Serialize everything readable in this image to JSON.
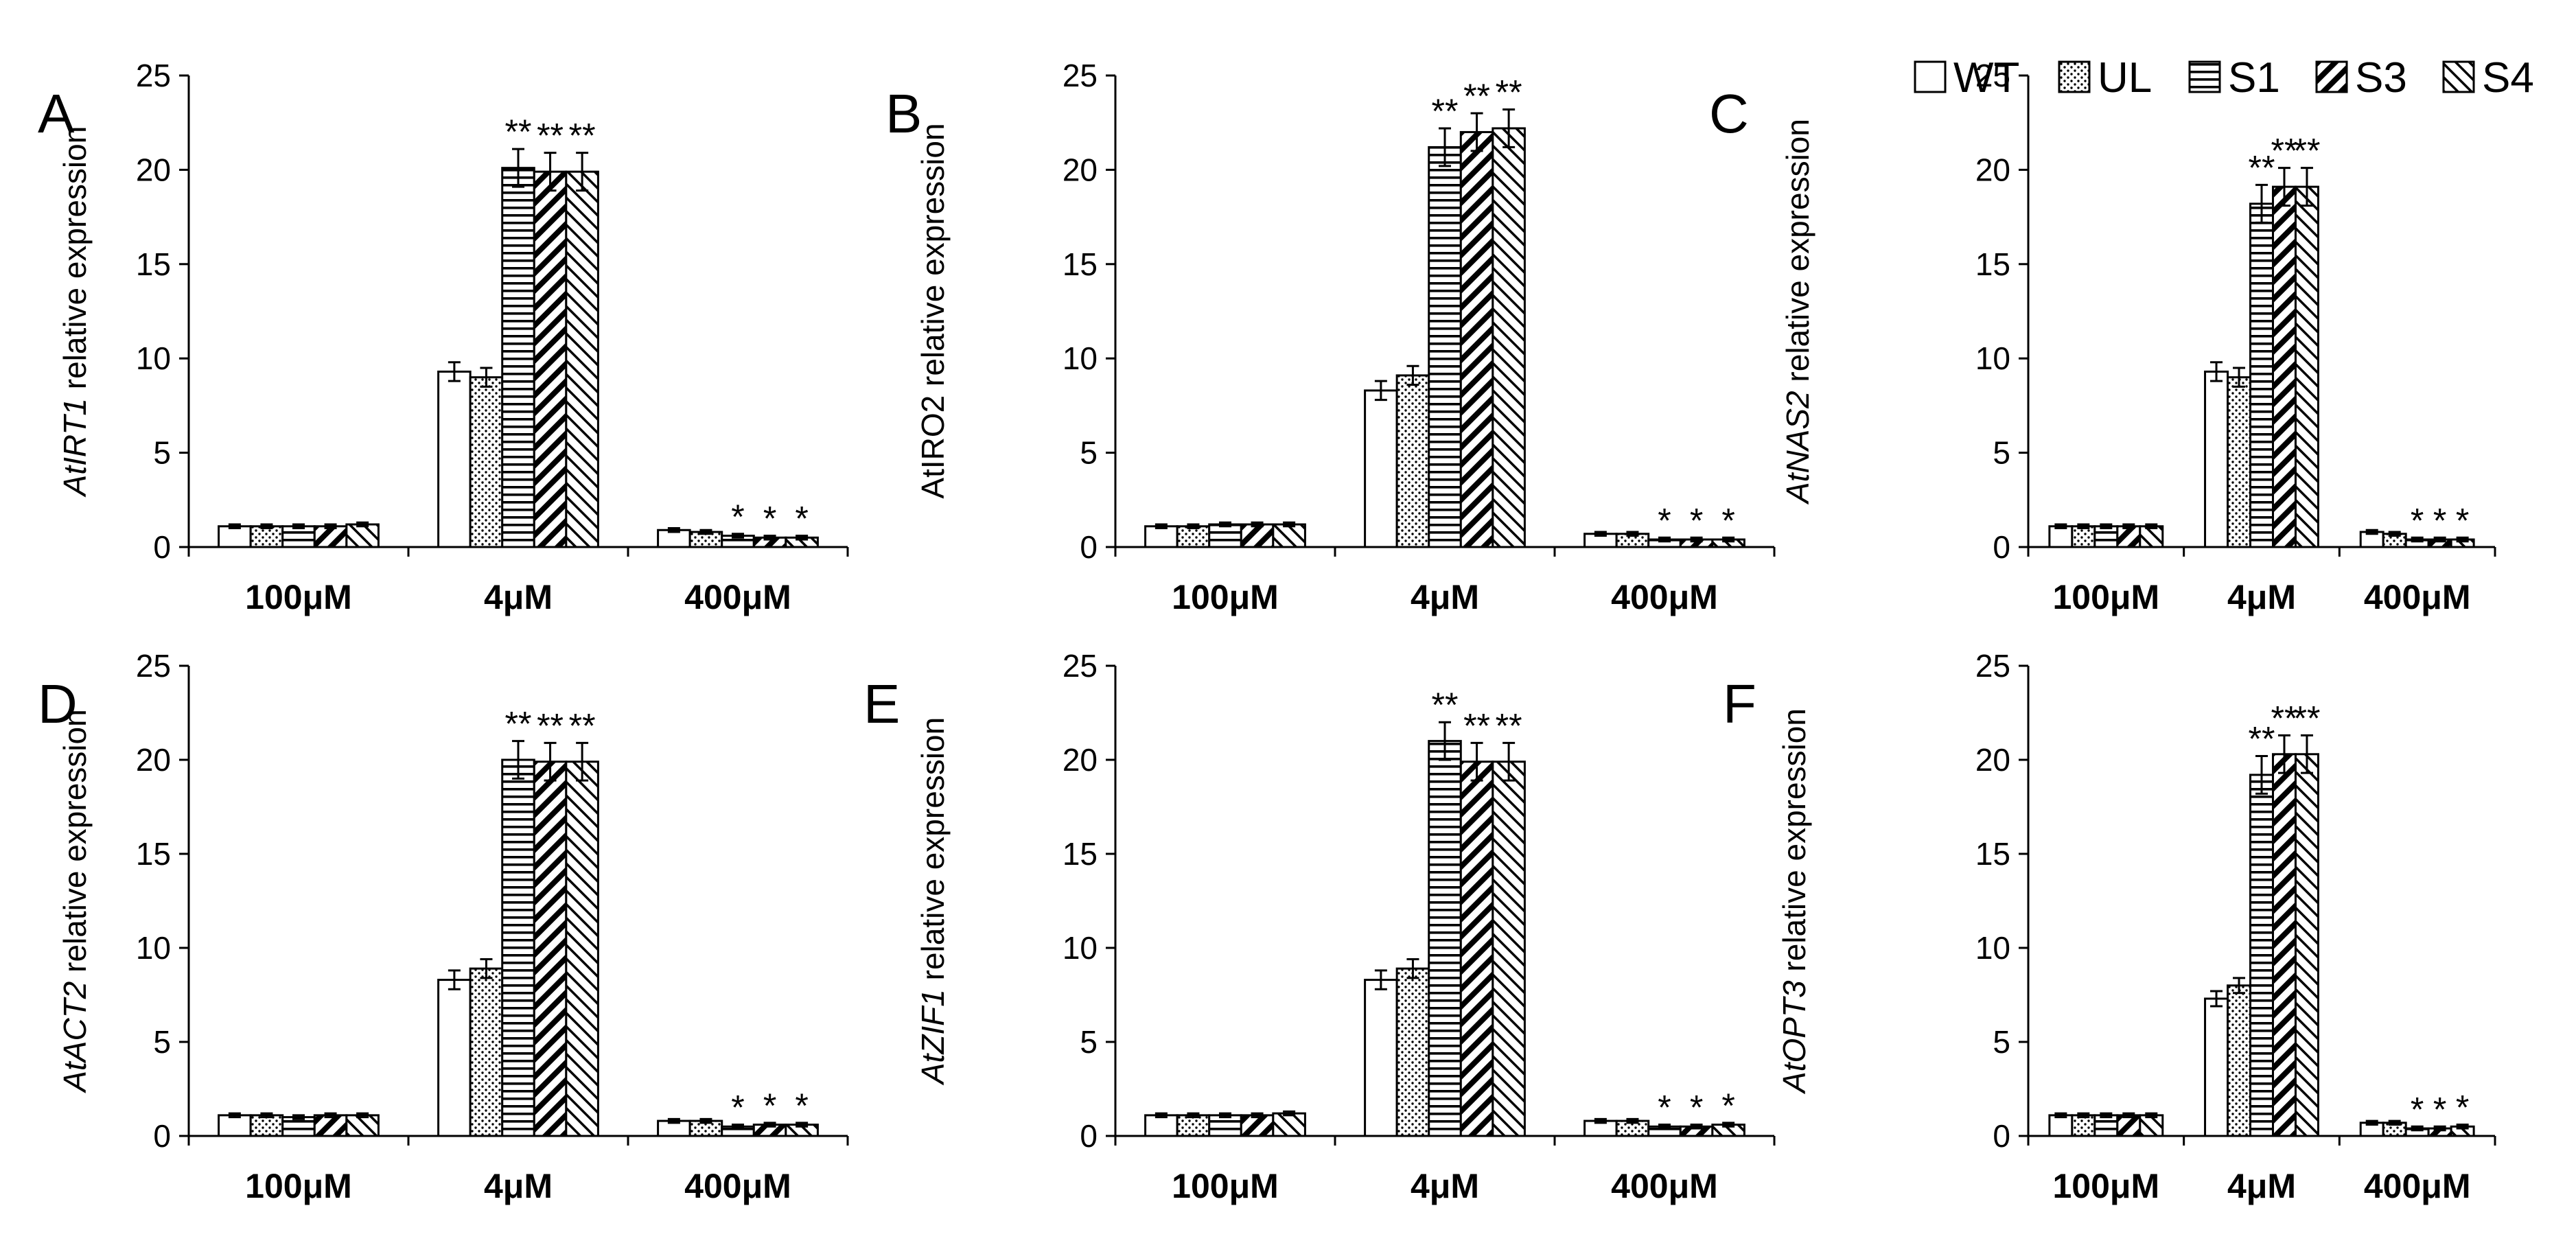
{
  "colors": {
    "bar_fill": "#ffffff",
    "ink": "#000000"
  },
  "legend": {
    "entries": [
      {
        "name": "WT",
        "pattern": "plain"
      },
      {
        "name": "UL",
        "pattern": "dots"
      },
      {
        "name": "S1",
        "pattern": "horizontal"
      },
      {
        "name": "S3",
        "pattern": "diag-down-wide"
      },
      {
        "name": "S4",
        "pattern": "diag-up"
      }
    ],
    "placement": "top-right"
  },
  "chart_data": [
    {
      "panel": "A",
      "type": "bar",
      "ylabel_italic": "AtIRT1",
      "ylabel_rest": " relative expression",
      "ylim": [
        0,
        25
      ],
      "yticks": [
        0,
        5,
        10,
        15,
        20,
        25
      ],
      "categories": [
        "100μM",
        "4μM",
        "400μM"
      ],
      "series": [
        {
          "name": "WT",
          "values": [
            1.1,
            9.3,
            0.9
          ],
          "errors": [
            0.1,
            0.5,
            0.1
          ],
          "sig": [
            "",
            "",
            ""
          ]
        },
        {
          "name": "UL",
          "values": [
            1.1,
            9.0,
            0.8
          ],
          "errors": [
            0.1,
            0.5,
            0.1
          ],
          "sig": [
            "",
            "",
            ""
          ]
        },
        {
          "name": "S1",
          "values": [
            1.1,
            20.1,
            0.6
          ],
          "errors": [
            0.1,
            1.0,
            0.1
          ],
          "sig": [
            "",
            "**",
            "*"
          ]
        },
        {
          "name": "S3",
          "values": [
            1.1,
            19.9,
            0.5
          ],
          "errors": [
            0.1,
            1.0,
            0.1
          ],
          "sig": [
            "",
            "**",
            "*"
          ]
        },
        {
          "name": "S4",
          "values": [
            1.2,
            19.9,
            0.5
          ],
          "errors": [
            0.1,
            1.0,
            0.1
          ],
          "sig": [
            "",
            "**",
            "*"
          ]
        }
      ]
    },
    {
      "panel": "B",
      "type": "bar",
      "ylabel_italic": "",
      "ylabel_rest": "AtIRO2 relative expression",
      "ylim": [
        0,
        25
      ],
      "yticks": [
        0,
        5,
        10,
        15,
        20,
        25
      ],
      "categories": [
        "100μM",
        "4μM",
        "400μM"
      ],
      "series": [
        {
          "name": "WT",
          "values": [
            1.1,
            8.3,
            0.7
          ],
          "errors": [
            0.1,
            0.5,
            0.1
          ],
          "sig": [
            "",
            "",
            ""
          ]
        },
        {
          "name": "UL",
          "values": [
            1.1,
            9.1,
            0.7
          ],
          "errors": [
            0.1,
            0.5,
            0.1
          ],
          "sig": [
            "",
            "",
            ""
          ]
        },
        {
          "name": "S1",
          "values": [
            1.2,
            21.2,
            0.4
          ],
          "errors": [
            0.1,
            1.0,
            0.1
          ],
          "sig": [
            "",
            "**",
            "*"
          ]
        },
        {
          "name": "S3",
          "values": [
            1.2,
            22.0,
            0.4
          ],
          "errors": [
            0.1,
            1.0,
            0.1
          ],
          "sig": [
            "",
            "**",
            "*"
          ]
        },
        {
          "name": "S4",
          "values": [
            1.2,
            22.2,
            0.4
          ],
          "errors": [
            0.1,
            1.0,
            0.1
          ],
          "sig": [
            "",
            "**",
            "*"
          ]
        }
      ]
    },
    {
      "panel": "C",
      "type": "bar",
      "ylabel_italic": "AtNAS2",
      "ylabel_rest": " relative expression",
      "ylim": [
        0,
        25
      ],
      "yticks": [
        0,
        5,
        10,
        15,
        20,
        25
      ],
      "categories": [
        "100μM",
        "4μM",
        "400μM"
      ],
      "series": [
        {
          "name": "WT",
          "values": [
            1.1,
            9.3,
            0.8
          ],
          "errors": [
            0.1,
            0.5,
            0.1
          ],
          "sig": [
            "",
            "",
            ""
          ]
        },
        {
          "name": "UL",
          "values": [
            1.1,
            9.0,
            0.7
          ],
          "errors": [
            0.1,
            0.5,
            0.1
          ],
          "sig": [
            "",
            "",
            ""
          ]
        },
        {
          "name": "S1",
          "values": [
            1.1,
            18.2,
            0.4
          ],
          "errors": [
            0.1,
            1.0,
            0.1
          ],
          "sig": [
            "",
            "**",
            "*"
          ]
        },
        {
          "name": "S3",
          "values": [
            1.1,
            19.1,
            0.4
          ],
          "errors": [
            0.1,
            1.0,
            0.1
          ],
          "sig": [
            "",
            "**",
            "*"
          ]
        },
        {
          "name": "S4",
          "values": [
            1.1,
            19.1,
            0.4
          ],
          "errors": [
            0.1,
            1.0,
            0.1
          ],
          "sig": [
            "",
            "**",
            "*"
          ]
        }
      ]
    },
    {
      "panel": "D",
      "type": "bar",
      "ylabel_italic": "AtACT2",
      "ylabel_rest": " relative expression",
      "ylim": [
        0,
        25
      ],
      "yticks": [
        0,
        5,
        10,
        15,
        20,
        25
      ],
      "categories": [
        "100μM",
        "4μM",
        "400μM"
      ],
      "series": [
        {
          "name": "WT",
          "values": [
            1.1,
            8.3,
            0.8
          ],
          "errors": [
            0.1,
            0.5,
            0.1
          ],
          "sig": [
            "",
            "",
            ""
          ]
        },
        {
          "name": "UL",
          "values": [
            1.1,
            8.9,
            0.8
          ],
          "errors": [
            0.1,
            0.5,
            0.1
          ],
          "sig": [
            "",
            "",
            ""
          ]
        },
        {
          "name": "S1",
          "values": [
            1.0,
            20.0,
            0.5
          ],
          "errors": [
            0.1,
            1.0,
            0.1
          ],
          "sig": [
            "",
            "**",
            "*"
          ]
        },
        {
          "name": "S3",
          "values": [
            1.1,
            19.9,
            0.6
          ],
          "errors": [
            0.1,
            1.0,
            0.1
          ],
          "sig": [
            "",
            "**",
            "*"
          ]
        },
        {
          "name": "S4",
          "values": [
            1.1,
            19.9,
            0.6
          ],
          "errors": [
            0.1,
            1.0,
            0.1
          ],
          "sig": [
            "",
            "**",
            "*"
          ]
        }
      ]
    },
    {
      "panel": "E",
      "type": "bar",
      "ylabel_italic": "AtZIF1",
      "ylabel_rest": " relative expression",
      "ylim": [
        0,
        25
      ],
      "yticks": [
        0,
        5,
        10,
        15,
        20,
        25
      ],
      "categories": [
        "100μM",
        "4μM",
        "400μM"
      ],
      "series": [
        {
          "name": "WT",
          "values": [
            1.1,
            8.3,
            0.8
          ],
          "errors": [
            0.1,
            0.5,
            0.1
          ],
          "sig": [
            "",
            "",
            ""
          ]
        },
        {
          "name": "UL",
          "values": [
            1.1,
            8.9,
            0.8
          ],
          "errors": [
            0.1,
            0.5,
            0.1
          ],
          "sig": [
            "",
            "",
            ""
          ]
        },
        {
          "name": "S1",
          "values": [
            1.1,
            21.0,
            0.5
          ],
          "errors": [
            0.1,
            1.0,
            0.1
          ],
          "sig": [
            "",
            "**",
            "*"
          ]
        },
        {
          "name": "S3",
          "values": [
            1.1,
            19.9,
            0.5
          ],
          "errors": [
            0.1,
            1.0,
            0.1
          ],
          "sig": [
            "",
            "**",
            "*"
          ]
        },
        {
          "name": "S4",
          "values": [
            1.2,
            19.9,
            0.6
          ],
          "errors": [
            0.1,
            1.0,
            0.1
          ],
          "sig": [
            "",
            "**",
            "*"
          ]
        }
      ]
    },
    {
      "panel": "F",
      "type": "bar",
      "ylabel_italic": "AtOPT3",
      "ylabel_rest": " relative expression",
      "ylim": [
        0,
        25
      ],
      "yticks": [
        0,
        5,
        10,
        15,
        20,
        25
      ],
      "categories": [
        "100μM",
        "4μM",
        "400μM"
      ],
      "series": [
        {
          "name": "WT",
          "values": [
            1.1,
            7.3,
            0.7
          ],
          "errors": [
            0.1,
            0.4,
            0.1
          ],
          "sig": [
            "",
            "",
            ""
          ]
        },
        {
          "name": "UL",
          "values": [
            1.1,
            8.0,
            0.7
          ],
          "errors": [
            0.1,
            0.4,
            0.1
          ],
          "sig": [
            "",
            "",
            ""
          ]
        },
        {
          "name": "S1",
          "values": [
            1.1,
            19.2,
            0.4
          ],
          "errors": [
            0.1,
            1.0,
            0.1
          ],
          "sig": [
            "",
            "**",
            "*"
          ]
        },
        {
          "name": "S3",
          "values": [
            1.1,
            20.3,
            0.4
          ],
          "errors": [
            0.1,
            1.0,
            0.1
          ],
          "sig": [
            "",
            "**",
            "*"
          ]
        },
        {
          "name": "S4",
          "values": [
            1.1,
            20.3,
            0.5
          ],
          "errors": [
            0.1,
            1.0,
            0.1
          ],
          "sig": [
            "",
            "**",
            "*"
          ]
        }
      ]
    }
  ]
}
